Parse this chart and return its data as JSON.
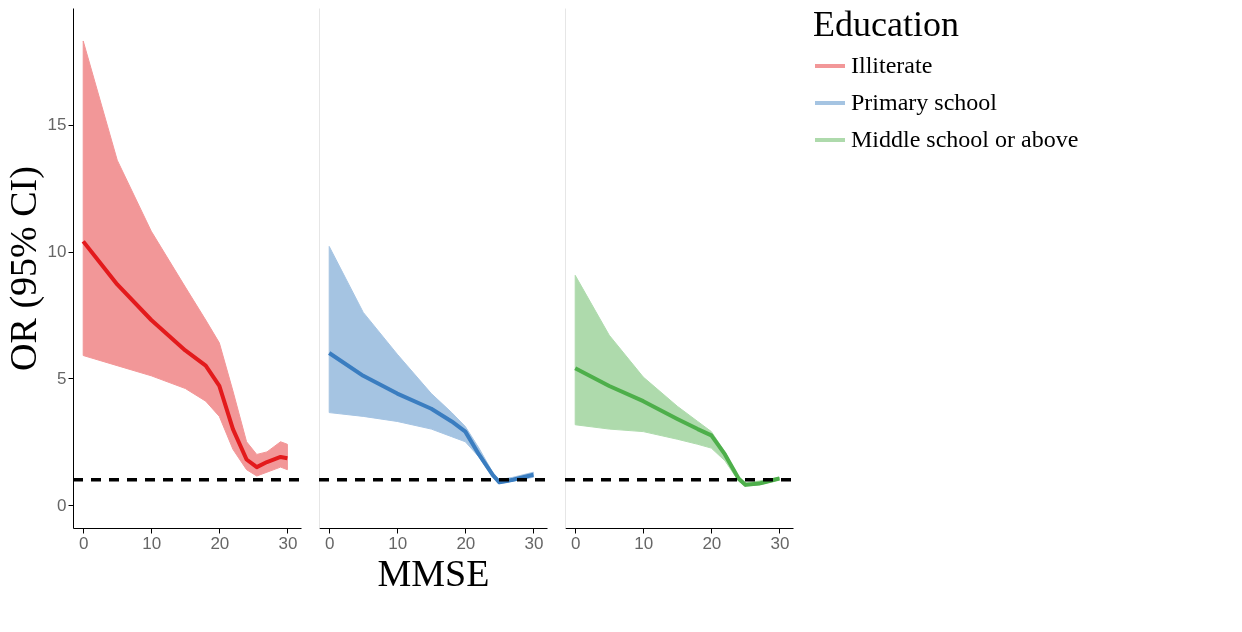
{
  "chart_data": [
    {
      "type": "line",
      "ylabel": "OR (95% CI)",
      "grid": false,
      "line_style": "solid",
      "marker": "none",
      "xlim": [
        -1.5,
        32
      ],
      "xticks": [
        0,
        10,
        20,
        30
      ],
      "ylim": [
        -0.9,
        19.6
      ],
      "yticks": [
        0,
        5,
        10,
        15
      ],
      "ref_lines": [
        {
          "axis": "y",
          "value": 1,
          "color": "#000000",
          "line_style": "dashed"
        }
      ],
      "series": [
        {
          "name": "Illiterate",
          "color": "#e31a1c",
          "x": [
            0,
            5,
            10,
            15,
            18,
            20,
            22,
            24,
            25.5,
            27,
            29,
            30
          ],
          "values": [
            10.4,
            8.7,
            7.3,
            6.1,
            5.5,
            4.7,
            3.0,
            1.8,
            1.5,
            1.7,
            1.9,
            1.85
          ],
          "upper": [
            18.3,
            13.6,
            10.8,
            8.6,
            7.3,
            6.4,
            4.5,
            2.5,
            2.0,
            2.1,
            2.5,
            2.4
          ],
          "lower": [
            5.9,
            5.5,
            5.1,
            4.6,
            4.1,
            3.5,
            2.2,
            1.4,
            1.15,
            1.3,
            1.5,
            1.4
          ]
        }
      ]
    },
    {
      "type": "line",
      "xlabel": "MMSE",
      "tick_labels": "x",
      "grid": false,
      "line_style": "solid",
      "marker": "none",
      "xlim": [
        -1.5,
        32
      ],
      "xticks": [
        0,
        10,
        20,
        30
      ],
      "ylim": [
        -0.9,
        19.6
      ],
      "yticks": [
        0,
        5,
        10,
        15
      ],
      "ref_lines": [
        {
          "axis": "y",
          "value": 1,
          "color": "#000000",
          "line_style": "dashed"
        }
      ],
      "series": [
        {
          "name": "Primary school",
          "color": "#3a7dc0",
          "x": [
            0,
            5,
            10,
            15,
            18,
            20,
            22,
            24,
            25,
            27,
            30
          ],
          "values": [
            6.0,
            5.1,
            4.4,
            3.8,
            3.3,
            2.9,
            2.0,
            1.2,
            0.9,
            1.0,
            1.2
          ],
          "upper": [
            10.2,
            7.6,
            5.95,
            4.4,
            3.65,
            3.1,
            2.25,
            1.3,
            1.0,
            1.1,
            1.3
          ],
          "lower": [
            3.65,
            3.5,
            3.3,
            3.0,
            2.7,
            2.5,
            1.9,
            1.1,
            0.85,
            0.95,
            1.1
          ]
        }
      ]
    },
    {
      "type": "line",
      "tick_labels": "x",
      "legend_title": "Education",
      "legend": "right",
      "grid": false,
      "line_style": "solid",
      "marker": "none",
      "xlim": [
        -1.5,
        32
      ],
      "xticks": [
        0,
        10,
        20,
        30
      ],
      "ylim": [
        -0.9,
        19.6
      ],
      "yticks": [
        0,
        5,
        10,
        15
      ],
      "ref_lines": [
        {
          "axis": "y",
          "value": 1,
          "color": "#000000",
          "line_style": "dashed"
        }
      ],
      "series": [
        {
          "name": "Middle school or above",
          "color": "#4daf4a",
          "x": [
            0,
            5,
            10,
            15,
            18,
            20,
            22,
            24,
            25,
            27,
            30
          ],
          "values": [
            5.4,
            4.7,
            4.1,
            3.4,
            3.0,
            2.75,
            2.0,
            1.05,
            0.8,
            0.85,
            1.05
          ],
          "upper": [
            9.06,
            6.7,
            5.05,
            3.9,
            3.3,
            2.9,
            2.1,
            1.1,
            0.9,
            0.95,
            1.1
          ],
          "lower": [
            3.17,
            3.0,
            2.9,
            2.6,
            2.4,
            2.25,
            1.75,
            0.95,
            0.75,
            0.8,
            1.0
          ]
        }
      ]
    }
  ]
}
